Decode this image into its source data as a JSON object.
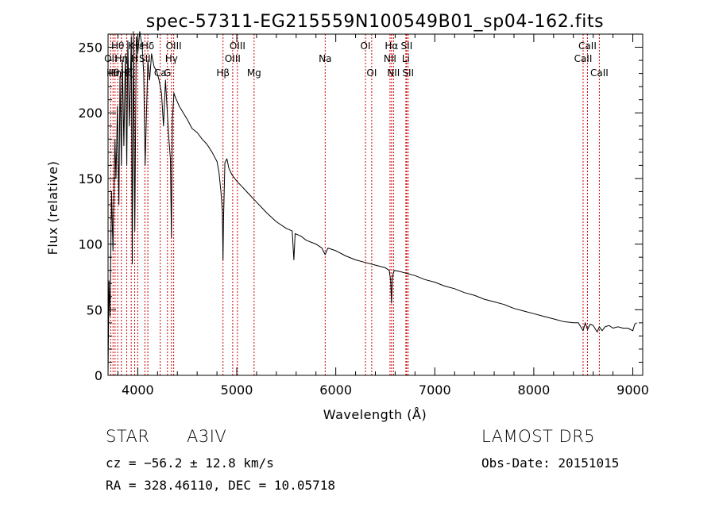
{
  "chart_data": {
    "type": "line",
    "title": "spec-57311-EG215559N100549B01_sp04-162.fits",
    "xlabel": "Wavelength (Å)",
    "ylabel": "Flux (relative)",
    "xlim": [
      3700,
      9100
    ],
    "ylim": [
      0,
      260
    ],
    "xticks": [
      4000,
      5000,
      6000,
      7000,
      8000,
      9000
    ],
    "yticks": [
      0,
      50,
      100,
      150,
      200,
      250
    ],
    "grid": false,
    "line_color": "#000000",
    "marker_color": "#cc0000",
    "series": [
      {
        "x": [
          3700,
          3710,
          3720,
          3735,
          3750,
          3770,
          3780,
          3795,
          3810,
          3820,
          3835,
          3845,
          3860,
          3875,
          3889,
          3900,
          3915,
          3935,
          3945,
          3955,
          3970,
          3985,
          4000,
          4020,
          4045,
          4060,
          4075,
          4102,
          4120,
          4140,
          4165,
          4190,
          4215,
          4240,
          4260,
          4280,
          4300,
          4315,
          4330,
          4340,
          4350,
          4365,
          4380,
          4420,
          4460,
          4500,
          4550,
          4600,
          4650,
          4700,
          4750,
          4800,
          4820,
          4840,
          4855,
          4861,
          4867,
          4880,
          4900,
          4920,
          4950,
          5000,
          5050,
          5100,
          5150,
          5200,
          5300,
          5400,
          5500,
          5560,
          5577,
          5590,
          5650,
          5700,
          5800,
          5860,
          5893,
          5920,
          6000,
          6100,
          6200,
          6300,
          6400,
          6500,
          6540,
          6555,
          6563,
          6572,
          6590,
          6650,
          6700,
          6800,
          6900,
          7000,
          7100,
          7200,
          7300,
          7400,
          7500,
          7600,
          7700,
          7800,
          7900,
          8000,
          8100,
          8200,
          8300,
          8400,
          8450,
          8498,
          8520,
          8542,
          8570,
          8600,
          8640,
          8662,
          8690,
          8720,
          8760,
          8800,
          8850,
          8900,
          8950,
          9000,
          9020,
          9040
        ],
        "y": [
          0,
          72,
          45,
          140,
          95,
          180,
          150,
          205,
          130,
          228,
          160,
          240,
          175,
          245,
          160,
          255,
          190,
          258,
          85,
          262,
          110,
          258,
          245,
          262,
          250,
          230,
          160,
          240,
          225,
          245,
          235,
          232,
          225,
          215,
          190,
          225,
          198,
          180,
          165,
          105,
          195,
          215,
          212,
          205,
          200,
          195,
          188,
          185,
          180,
          176,
          170,
          163,
          155,
          140,
          125,
          88,
          120,
          162,
          165,
          158,
          153,
          148,
          144,
          140,
          136,
          132,
          124,
          117,
          112,
          110,
          88,
          108,
          106,
          103,
          100,
          97,
          92,
          97,
          95,
          91,
          88,
          86,
          84,
          82,
          80,
          72,
          55,
          75,
          80,
          79,
          78,
          76,
          73,
          71,
          68,
          66,
          63,
          61,
          58,
          56,
          54,
          51,
          49,
          47,
          45,
          43,
          41,
          40,
          40,
          34,
          40,
          35,
          39,
          38,
          33,
          37,
          34,
          37,
          38,
          36,
          37,
          36,
          36,
          34,
          39,
          40
        ]
      }
    ],
    "line_markers": [
      {
        "wl": 3727,
        "label": "OII",
        "row": 2
      },
      {
        "wl": 3750,
        "label": "Hθ",
        "row": 3
      },
      {
        "wl": 3771,
        "label": "Hη",
        "row": 3
      },
      {
        "wl": 3798,
        "label": "Hθ",
        "row": 1
      },
      {
        "wl": 3835,
        "label": "Hη",
        "row": 2
      },
      {
        "wl": 3889,
        "label": "Hζ",
        "row": 3
      },
      {
        "wl": 3934,
        "label": "K",
        "row": 1
      },
      {
        "wl": 3969,
        "label": "H",
        "row": 2
      },
      {
        "wl": 4000,
        "label": "Hε",
        "row": 1
      },
      {
        "wl": 4072,
        "label": "SII",
        "row": 2
      },
      {
        "wl": 4102,
        "label": "Hδ",
        "row": 1
      },
      {
        "wl": 4227,
        "label": "Ca",
        "row": 3
      },
      {
        "wl": 4300,
        "label": "G",
        "row": 3
      },
      {
        "wl": 4340,
        "label": "Hγ",
        "row": 2
      },
      {
        "wl": 4363,
        "label": "OIII",
        "row": 1
      },
      {
        "wl": 4861,
        "label": "Hβ",
        "row": 3
      },
      {
        "wl": 4959,
        "label": "OIII",
        "row": 2
      },
      {
        "wl": 5007,
        "label": "OIII",
        "row": 1
      },
      {
        "wl": 5175,
        "label": "Mg",
        "row": 3
      },
      {
        "wl": 5893,
        "label": "Na",
        "row": 2
      },
      {
        "wl": 6300,
        "label": "OI",
        "row": 1
      },
      {
        "wl": 6363,
        "label": "OI",
        "row": 3
      },
      {
        "wl": 6548,
        "label": "NII",
        "row": 2
      },
      {
        "wl": 6563,
        "label": "Hα",
        "row": 1
      },
      {
        "wl": 6583,
        "label": "NII",
        "row": 3
      },
      {
        "wl": 6708,
        "label": "Li",
        "row": 2
      },
      {
        "wl": 6716,
        "label": "SII",
        "row": 1
      },
      {
        "wl": 6731,
        "label": "SII",
        "row": 3
      },
      {
        "wl": 8498,
        "label": "CaII",
        "row": 2
      },
      {
        "wl": 8542,
        "label": "CaII",
        "row": 1
      },
      {
        "wl": 8662,
        "label": "CaII",
        "row": 3
      }
    ]
  },
  "info": {
    "object_class": "STAR",
    "subclass": "A3IV",
    "survey": "LAMOST DR5",
    "redshift": "cz = −56.2 ± 12.8 km/s",
    "obs_date": "Obs-Date: 20151015",
    "coords": "RA = 328.46110, DEC =  10.05718"
  }
}
